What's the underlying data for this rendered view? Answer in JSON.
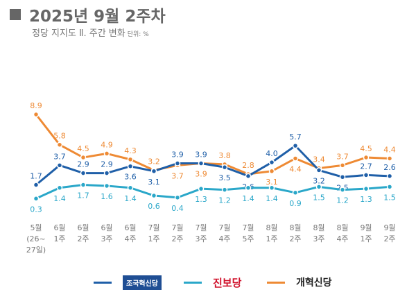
{
  "title": "2025년 9월 2주차",
  "subtitle": "정당 지지도 Ⅱ. 주간 변화",
  "unit": "단위: %",
  "chart_data": {
    "type": "line",
    "categories": [
      [
        "5월",
        "(26~",
        "27일)"
      ],
      [
        "6월",
        "1주"
      ],
      [
        "6월",
        "2주"
      ],
      [
        "6월",
        "3주"
      ],
      [
        "6월",
        "4주"
      ],
      [
        "7월",
        "1주"
      ],
      [
        "7월",
        "2주"
      ],
      [
        "7월",
        "3주"
      ],
      [
        "7월",
        "4주"
      ],
      [
        "7월",
        "5주"
      ],
      [
        "8월",
        "1주"
      ],
      [
        "8월",
        "2주"
      ],
      [
        "8월",
        "3주"
      ],
      [
        "8월",
        "4주"
      ],
      [
        "9월",
        "1주"
      ],
      [
        "9월",
        "2주"
      ]
    ],
    "series": [
      {
        "name": "개혁신당",
        "color": "#EE8A34",
        "values": [
          8.9,
          5.8,
          4.5,
          4.9,
          4.3,
          3.2,
          3.7,
          3.9,
          3.8,
          2.8,
          3.1,
          4.4,
          3.4,
          3.7,
          4.5,
          4.4
        ]
      },
      {
        "name": "조국혁신당",
        "color": "#1F5FA8",
        "values": [
          1.7,
          3.7,
          2.9,
          2.9,
          3.6,
          3.1,
          3.9,
          3.9,
          3.5,
          2.6,
          4.0,
          5.7,
          3.2,
          2.5,
          2.7,
          2.6
        ]
      },
      {
        "name": "진보당",
        "color": "#2AA7C9",
        "values": [
          0.3,
          1.4,
          1.7,
          1.6,
          1.4,
          0.6,
          0.4,
          1.3,
          1.2,
          1.4,
          1.4,
          0.9,
          1.5,
          1.2,
          1.3,
          1.5
        ]
      }
    ],
    "legend_position": "bottom",
    "grid": false
  }
}
